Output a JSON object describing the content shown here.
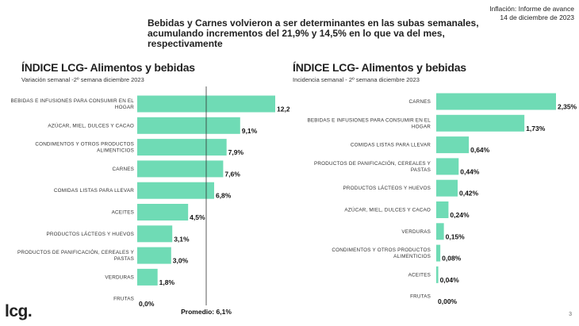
{
  "header": {
    "title": "Bebidas y Carnes volvieron a ser determinantes en las subas semanales, acumulando incrementos del 21,9% y 14,5% en lo que va del mes, respectivamente",
    "tag_line1": "Inflación: Informe de avance",
    "tag_line2": "14 de diciembre de 2023"
  },
  "footer": {
    "logo": "lcg.",
    "page": "3"
  },
  "colors": {
    "bar": "#6fdbb5",
    "line": "#333333"
  },
  "chart_data": [
    {
      "type": "bar",
      "orientation": "horizontal",
      "title": "ÍNDICE LCG- Alimentos y bebidas",
      "subtitle": "Variación semanal -2º semana diciembre 2023",
      "categories": [
        "BEBIDAS E INFUSIONES PARA CONSUMIR EN EL HOGAR",
        "AZÚCAR, MIEL, DULCES Y CACAO",
        "CONDIMENTOS Y OTROS PRODUCTOS ALIMENTICIOS",
        "CARNES",
        "COMIDAS LISTAS PARA LLEVAR",
        "ACEITES",
        "PRODUCTOS LÁCTEOS Y HUEVOS",
        "PRODUCTOS DE PANIFICACIÓN, CEREALES Y PASTAS",
        "VERDURAS",
        "FRUTAS"
      ],
      "category_lines": [
        [
          "BEBIDAS E INFUSIONES PARA CONSUMIR EN EL",
          "HOGAR"
        ],
        [
          "AZÚCAR, MIEL, DULCES Y CACAO"
        ],
        [
          "CONDIMENTOS Y OTROS PRODUCTOS",
          "ALIMENTICIOS"
        ],
        [
          "CARNES"
        ],
        [
          "COMIDAS LISTAS PARA LLEVAR"
        ],
        [
          "ACEITES"
        ],
        [
          "PRODUCTOS LÁCTEOS Y HUEVOS"
        ],
        [
          "PRODUCTOS DE PANIFICACIÓN, CEREALES Y",
          "PASTAS"
        ],
        [
          "VERDURAS"
        ],
        [
          "FRUTAS"
        ]
      ],
      "values": [
        12.2,
        9.1,
        7.9,
        7.6,
        6.8,
        4.5,
        3.1,
        3.0,
        1.8,
        0.0
      ],
      "value_labels": [
        "12,2%",
        "9,1%",
        "7,9%",
        "7,6%",
        "6,8%",
        "4,5%",
        "3,1%",
        "3,0%",
        "1,8%",
        "0,0%"
      ],
      "reference_line": {
        "value": 6.1,
        "label": "Promedio: 6,1%"
      },
      "xlim": [
        0,
        12.2
      ]
    },
    {
      "type": "bar",
      "orientation": "horizontal",
      "title": "ÍNDICE LCG- Alimentos y bebidas",
      "subtitle": "Incidencia semanal - 2º semana diciembre 2023",
      "categories": [
        "CARNES",
        "BEBIDAS E INFUSIONES PARA CONSUMIR EN EL HOGAR",
        "COMIDAS LISTAS PARA LLEVAR",
        "PRODUCTOS DE PANIFICACIÓN, CEREALES Y PASTAS",
        "PRODUCTOS LÁCTEOS Y HUEVOS",
        "AZÚCAR, MIEL, DULCES Y CACAO",
        "VERDURAS",
        "CONDIMENTOS Y OTROS PRODUCTOS ALIMENTICIOS",
        "ACEITES",
        "FRUTAS"
      ],
      "category_lines": [
        [
          "CARNES"
        ],
        [
          "BEBIDAS E INFUSIONES PARA CONSUMIR EN EL",
          "HOGAR"
        ],
        [
          "COMIDAS LISTAS PARA LLEVAR"
        ],
        [
          "PRODUCTOS DE PANIFICACIÓN, CEREALES Y",
          "PASTAS"
        ],
        [
          "PRODUCTOS LÁCTEOS Y HUEVOS"
        ],
        [
          "AZÚCAR, MIEL, DULCES Y CACAO"
        ],
        [
          "VERDURAS"
        ],
        [
          "CONDIMENTOS Y OTROS PRODUCTOS",
          "ALIMENTICIOS"
        ],
        [
          "ACEITES"
        ],
        [
          "FRUTAS"
        ]
      ],
      "values": [
        2.35,
        1.73,
        0.64,
        0.44,
        0.42,
        0.24,
        0.15,
        0.08,
        0.04,
        0.0
      ],
      "value_labels": [
        "2,35%",
        "1,73%",
        "0,64%",
        "0,44%",
        "0,42%",
        "0,24%",
        "0,15%",
        "0,08%",
        "0,04%",
        "0,00%"
      ],
      "xlim": [
        0,
        2.35
      ]
    }
  ]
}
